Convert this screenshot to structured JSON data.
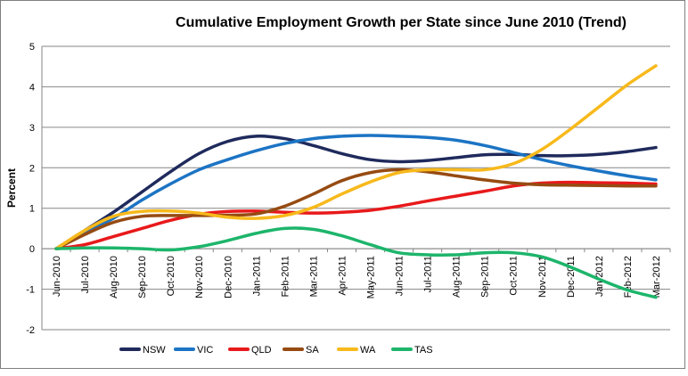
{
  "chart_data": {
    "type": "line",
    "title": "Cumulative Employment Growth per State since June 2010 (Trend)",
    "xlabel": "",
    "ylabel": "Percent",
    "ylim": [
      -2,
      5
    ],
    "yticks": [
      "-2",
      "-1",
      "0",
      "1",
      "2",
      "3",
      "4",
      "5"
    ],
    "grid": "horizontal",
    "legend_position": "bottom",
    "categories": [
      "Jun-2010",
      "Jul-2010",
      "Aug-2010",
      "Sep-2010",
      "Oct-2010",
      "Nov-2010",
      "Dec-2010",
      "Jan-2011",
      "Feb-2011",
      "Mar-2011",
      "Apr-2011",
      "May-2011",
      "Jun-2011",
      "Jul-2011",
      "Aug-2011",
      "Sep-2011",
      "Oct-2011",
      "Nov-2011",
      "Dec-2011",
      "Jan-2012",
      "Feb-2012",
      "Mar-2012"
    ],
    "series": [
      {
        "name": "NSW",
        "color": "#1f2a5c",
        "values": [
          0,
          0.45,
          0.9,
          1.4,
          1.9,
          2.35,
          2.65,
          2.78,
          2.72,
          2.55,
          2.35,
          2.2,
          2.15,
          2.18,
          2.25,
          2.32,
          2.33,
          2.3,
          2.3,
          2.33,
          2.4,
          2.5
        ]
      },
      {
        "name": "VIC",
        "color": "#1c74c4",
        "values": [
          0,
          0.4,
          0.75,
          1.2,
          1.6,
          1.95,
          2.2,
          2.42,
          2.6,
          2.72,
          2.78,
          2.8,
          2.78,
          2.75,
          2.68,
          2.55,
          2.38,
          2.2,
          2.05,
          1.92,
          1.8,
          1.7
        ]
      },
      {
        "name": "QLD",
        "color": "#e8191b",
        "values": [
          0,
          0.1,
          0.3,
          0.5,
          0.7,
          0.85,
          0.92,
          0.93,
          0.9,
          0.88,
          0.9,
          0.95,
          1.05,
          1.18,
          1.3,
          1.42,
          1.55,
          1.62,
          1.64,
          1.63,
          1.62,
          1.6
        ]
      },
      {
        "name": "SA",
        "color": "#964b12",
        "values": [
          0,
          0.35,
          0.65,
          0.8,
          0.82,
          0.82,
          0.83,
          0.86,
          1.05,
          1.35,
          1.68,
          1.88,
          1.95,
          1.9,
          1.8,
          1.7,
          1.62,
          1.58,
          1.57,
          1.56,
          1.55,
          1.55
        ]
      },
      {
        "name": "WA",
        "color": "#f7b91b",
        "values": [
          0,
          0.45,
          0.8,
          0.92,
          0.93,
          0.88,
          0.78,
          0.75,
          0.82,
          1.02,
          1.35,
          1.65,
          1.88,
          1.95,
          1.95,
          1.95,
          2.1,
          2.45,
          2.95,
          3.5,
          4.05,
          4.52
        ]
      },
      {
        "name": "TAS",
        "color": "#1db56b",
        "values": [
          0,
          0.02,
          0.02,
          0.0,
          -0.03,
          0.05,
          0.2,
          0.38,
          0.5,
          0.48,
          0.32,
          0.1,
          -0.1,
          -0.15,
          -0.15,
          -0.1,
          -0.1,
          -0.2,
          -0.45,
          -0.75,
          -1.02,
          -1.2
        ]
      }
    ]
  }
}
